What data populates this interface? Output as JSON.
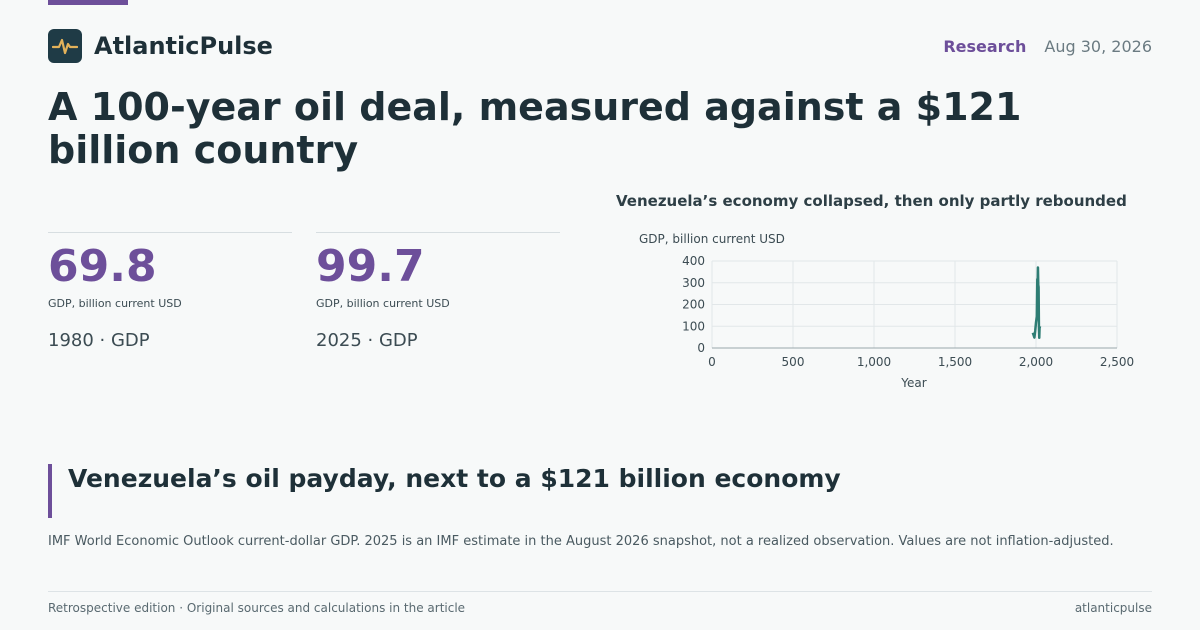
{
  "header": {
    "brand": "AtlanticPulse",
    "section": "Research",
    "date": "Aug 30, 2026"
  },
  "icons": {
    "logo": "pulse-icon"
  },
  "colors": {
    "accent": "#6d4f9a",
    "line": "#2e7d74",
    "logo_bg": "#1f3b46"
  },
  "headline": "A 100-year oil deal, measured against a $121 billion country",
  "stats": [
    {
      "value": "69.8",
      "unit": "GDP, billion current USD",
      "label": "1980 · GDP"
    },
    {
      "value": "99.7",
      "unit": "GDP, billion current USD",
      "label": "2025 · GDP"
    }
  ],
  "chart_data": {
    "type": "line",
    "title": "Venezuela’s economy collapsed, then only partly rebounded",
    "ylabel": "GDP, billion current USD",
    "xlabel": "Year",
    "xlim": [
      0,
      2500
    ],
    "ylim": [
      0,
      400
    ],
    "xticks": [
      "0",
      "500",
      "1,000",
      "1,500",
      "2,000",
      "2,500"
    ],
    "yticks": [
      "0",
      "100",
      "200",
      "300",
      "400"
    ],
    "grid": true,
    "series": [
      {
        "x": [
          1980,
          1985,
          1990,
          1995,
          2000,
          2005,
          2008,
          2010,
          2012,
          2014,
          2016,
          2018,
          2020,
          2022,
          2025
        ],
        "values": [
          69.8,
          60,
          48,
          78,
          117,
          145,
          316,
          271,
          370,
          290,
          280,
          98,
          47,
          92,
          99.7
        ]
      }
    ]
  },
  "section": {
    "title": "Venezuela’s oil payday, next to a $121 billion economy"
  },
  "note": "IMF World Economic Outlook current-dollar GDP. 2025 is an IMF estimate in the August 2026 snapshot, not a realized observation. Values are not inflation-adjusted.",
  "footer": {
    "left": "Retrospective edition · Original sources and calculations in the article",
    "right": "atlanticpulse"
  }
}
